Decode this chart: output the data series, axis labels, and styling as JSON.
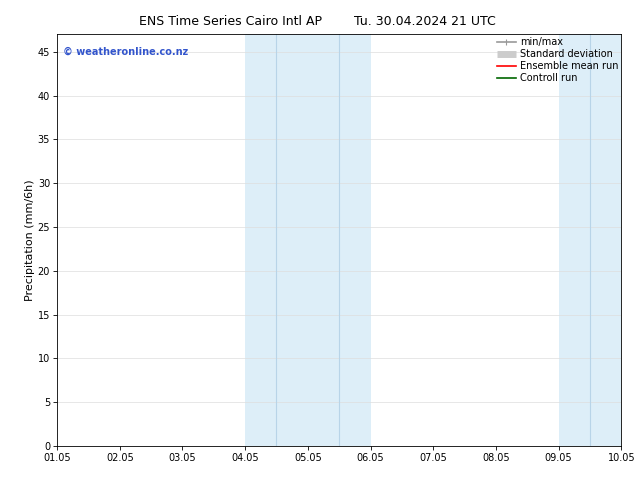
{
  "title_left": "ENS Time Series Cairo Intl AP",
  "title_right": "Tu. 30.04.2024 21 UTC",
  "ylabel": "Precipitation (mm/6h)",
  "ylim": [
    0,
    47
  ],
  "yticks": [
    0,
    5,
    10,
    15,
    20,
    25,
    30,
    35,
    40,
    45
  ],
  "xtick_labels": [
    "01.05",
    "02.05",
    "03.05",
    "04.05",
    "05.05",
    "06.05",
    "07.05",
    "08.05",
    "09.05",
    "10.05"
  ],
  "shaded_regions": [
    {
      "xstart": 3.0,
      "xend": 5.0,
      "color": "#ddeef8"
    },
    {
      "xstart": 8.0,
      "xend": 9.0,
      "color": "#ddeef8"
    }
  ],
  "vertical_lines": [
    {
      "x": 3.5,
      "color": "#b8d4e8",
      "lw": 0.8
    },
    {
      "x": 4.5,
      "color": "#b8d4e8",
      "lw": 0.8
    },
    {
      "x": 8.5,
      "color": "#b8d4e8",
      "lw": 0.8
    }
  ],
  "watermark": "© weatheronline.co.nz",
  "watermark_color": "#3355cc",
  "background_color": "#ffffff",
  "legend_items": [
    {
      "label": "min/max",
      "color": "#999999",
      "lw": 1.2,
      "style": "minmax"
    },
    {
      "label": "Standard deviation",
      "color": "#cccccc",
      "lw": 5,
      "style": "thick"
    },
    {
      "label": "Ensemble mean run",
      "color": "#ff0000",
      "lw": 1.2,
      "style": "line"
    },
    {
      "label": "Controll run",
      "color": "#006600",
      "lw": 1.2,
      "style": "line"
    }
  ],
  "title_fontsize": 9,
  "ylabel_fontsize": 8,
  "tick_fontsize": 7,
  "watermark_fontsize": 7,
  "legend_fontsize": 7
}
